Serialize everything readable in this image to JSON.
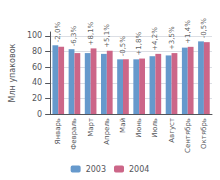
{
  "chart_data": {
    "type": "bar",
    "categories": [
      "Январь",
      "Февраль",
      "Март",
      "Апрель",
      "Май",
      "Июнь",
      "Июль",
      "Август",
      "Сентябрь",
      "Октябрь"
    ],
    "series": [
      {
        "name": "2003",
        "color": "#6699cc",
        "values": [
          88,
          83,
          78,
          77,
          70,
          70,
          74,
          75,
          85,
          93
        ]
      },
      {
        "name": "2004",
        "color": "#cc6688",
        "values": [
          86,
          78,
          84,
          81,
          70,
          71,
          77,
          78,
          86,
          92
        ]
      }
    ],
    "ylabel": "Млн упаковок",
    "ylim": [
      0,
      105
    ],
    "yticks": [
      0,
      20,
      40,
      60,
      80,
      100
    ],
    "grid": true,
    "legend": "bottom",
    "annotations": [
      {
        "category": "Январь",
        "text": "-2,0%"
      },
      {
        "category": "Февраль",
        "text": "-6,3%"
      },
      {
        "category": "Март",
        "text": "+8,1%"
      },
      {
        "category": "Апрель",
        "text": "+5,1%"
      },
      {
        "category": "Май",
        "text": "-0,5%"
      },
      {
        "category": "Июнь",
        "text": "+1,8%"
      },
      {
        "category": "Июль",
        "text": "+4,2%"
      },
      {
        "category": "Август",
        "text": "+3,5%"
      },
      {
        "category": "Сентябрь",
        "text": "+1,4%"
      },
      {
        "category": "Октябрь",
        "text": "-0,5%"
      }
    ]
  }
}
